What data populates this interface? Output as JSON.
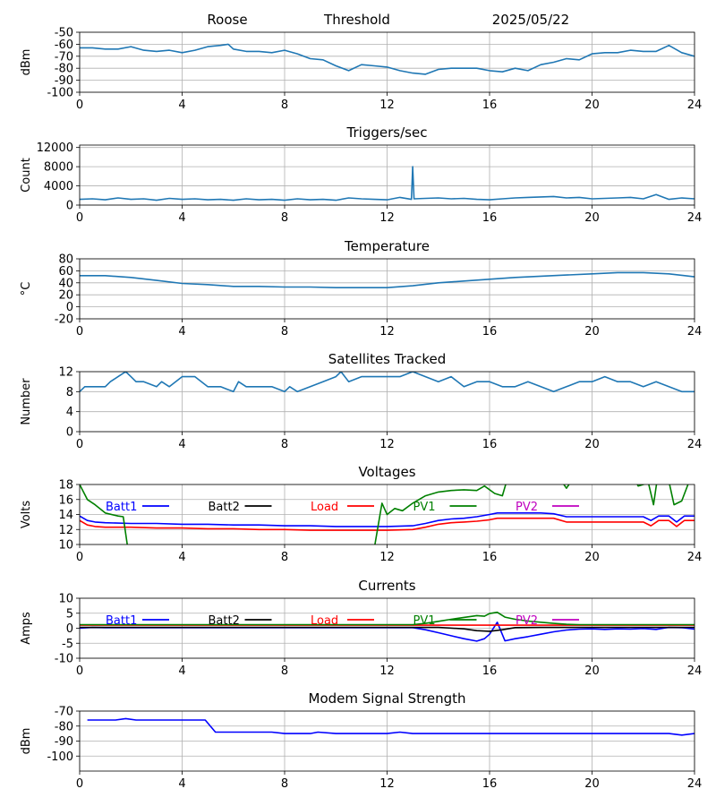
{
  "header": {
    "station": "Roose",
    "mode": "Threshold",
    "date": "2025/05/22"
  },
  "chart_data": [
    {
      "id": "signal",
      "type": "line",
      "title": "",
      "ylabel": "dBm",
      "xlim": [
        0,
        24
      ],
      "xticks": [
        0,
        4,
        8,
        12,
        16,
        20,
        24
      ],
      "ylim": [
        -100,
        -50
      ],
      "yticks": [
        -100,
        -90,
        -80,
        -70,
        -60,
        -50
      ],
      "grid": true,
      "series": [
        {
          "color": "#1f77b4",
          "x": [
            0,
            0.5,
            1,
            1.5,
            2,
            2.5,
            3,
            3.5,
            4,
            4.5,
            5,
            5.5,
            5.8,
            6,
            6.5,
            7,
            7.5,
            8,
            8.5,
            9,
            9.5,
            10,
            10.5,
            11,
            11.5,
            12,
            12.5,
            13,
            13.5,
            14,
            14.5,
            15,
            15.5,
            16,
            16.5,
            17,
            17.5,
            18,
            18.5,
            19,
            19.5,
            20,
            20.5,
            21,
            21.5,
            22,
            22.5,
            23,
            23.5,
            24
          ],
          "y": [
            -63,
            -63,
            -64,
            -64,
            -62,
            -65,
            -66,
            -65,
            -67,
            -65,
            -62,
            -61,
            -60,
            -64,
            -66,
            -66,
            -67,
            -65,
            -68,
            -72,
            -73,
            -78,
            -82,
            -77,
            -78,
            -79,
            -82,
            -84,
            -85,
            -81,
            -80,
            -80,
            -80,
            -82,
            -83,
            -80,
            -82,
            -77,
            -75,
            -72,
            -73,
            -68,
            -67,
            -67,
            -65,
            -66,
            -66,
            -61,
            -67,
            -70
          ]
        }
      ]
    },
    {
      "id": "triggers",
      "type": "line",
      "title": "Triggers/sec",
      "ylabel": "Count",
      "xlim": [
        0,
        24
      ],
      "xticks": [
        0,
        4,
        8,
        12,
        16,
        20,
        24
      ],
      "ylim": [
        0,
        12500
      ],
      "yticks": [
        0,
        4000,
        8000,
        12000
      ],
      "grid": true,
      "series": [
        {
          "color": "#1f77b4",
          "x": [
            0,
            0.5,
            1,
            1.5,
            2,
            2.5,
            3,
            3.5,
            4,
            4.5,
            5,
            5.5,
            6,
            6.5,
            7,
            7.5,
            8,
            8.5,
            9,
            9.5,
            10,
            10.5,
            11,
            11.5,
            12,
            12.5,
            12.95,
            13,
            13.05,
            13.5,
            14,
            14.5,
            15,
            15.5,
            16,
            16.5,
            17,
            17.5,
            18,
            18.5,
            19,
            19.5,
            20,
            20.5,
            21,
            21.5,
            22,
            22.5,
            23,
            23.5,
            24
          ],
          "y": [
            1200,
            1300,
            1100,
            1500,
            1200,
            1300,
            1000,
            1400,
            1200,
            1300,
            1100,
            1200,
            1000,
            1300,
            1100,
            1200,
            1000,
            1300,
            1100,
            1200,
            1000,
            1500,
            1300,
            1200,
            1100,
            1600,
            1200,
            8000,
            1300,
            1400,
            1500,
            1300,
            1400,
            1200,
            1100,
            1300,
            1500,
            1600,
            1700,
            1800,
            1500,
            1600,
            1300,
            1400,
            1500,
            1600,
            1300,
            2200,
            1200,
            1500,
            1300
          ]
        }
      ]
    },
    {
      "id": "temperature",
      "type": "line",
      "title": "Temperature",
      "ylabel": "°C",
      "xlim": [
        0,
        24
      ],
      "xticks": [
        0,
        4,
        8,
        12,
        16,
        20,
        24
      ],
      "ylim": [
        -20,
        80
      ],
      "yticks": [
        -20,
        0,
        20,
        40,
        60,
        80
      ],
      "grid": true,
      "series": [
        {
          "color": "#1f77b4",
          "x": [
            0,
            1,
            2,
            3,
            4,
            5,
            6,
            7,
            8,
            9,
            10,
            11,
            12,
            13,
            14,
            15,
            16,
            17,
            18,
            19,
            20,
            21,
            22,
            23,
            24
          ],
          "y": [
            52,
            52,
            49,
            44,
            39,
            37,
            34,
            34,
            33,
            33,
            32,
            32,
            32,
            35,
            40,
            43,
            46,
            49,
            51,
            53,
            55,
            57,
            57,
            55,
            50
          ]
        }
      ]
    },
    {
      "id": "satellites",
      "type": "line",
      "title": "Satellites Tracked",
      "ylabel": "Number",
      "xlim": [
        0,
        24
      ],
      "xticks": [
        0,
        4,
        8,
        12,
        16,
        20,
        24
      ],
      "ylim": [
        0,
        12
      ],
      "yticks": [
        0,
        4,
        8,
        12
      ],
      "grid": true,
      "series": [
        {
          "color": "#1f77b4",
          "x": [
            0,
            0.2,
            0.5,
            1,
            1.2,
            1.5,
            1.8,
            2,
            2.2,
            2.5,
            3,
            3.2,
            3.5,
            4,
            4.5,
            5,
            5.5,
            6,
            6.2,
            6.5,
            7,
            7.5,
            8,
            8.2,
            8.5,
            9,
            9.5,
            10,
            10.2,
            10.5,
            11,
            11.5,
            12,
            12.5,
            13,
            13.5,
            14,
            14.5,
            15,
            15.5,
            16,
            16.5,
            17,
            17.5,
            18,
            18.5,
            19,
            19.5,
            20,
            20.5,
            21,
            21.5,
            22,
            22.5,
            23,
            23.5,
            24
          ],
          "y": [
            8,
            9,
            9,
            9,
            10,
            11,
            12,
            11,
            10,
            10,
            9,
            10,
            9,
            11,
            11,
            9,
            9,
            8,
            10,
            9,
            9,
            9,
            8,
            9,
            8,
            9,
            10,
            11,
            12,
            10,
            11,
            11,
            11,
            11,
            12,
            11,
            10,
            11,
            9,
            10,
            10,
            9,
            9,
            10,
            9,
            8,
            9,
            10,
            10,
            11,
            10,
            10,
            9,
            10,
            9,
            8,
            8
          ]
        }
      ]
    },
    {
      "id": "voltages",
      "type": "line",
      "title": "Voltages",
      "ylabel": "Volts",
      "xlim": [
        0,
        24
      ],
      "xticks": [
        0,
        4,
        8,
        12,
        16,
        20,
        24
      ],
      "ylim": [
        10,
        18
      ],
      "yticks": [
        10,
        12,
        14,
        16,
        18
      ],
      "grid": true,
      "legend": "inline-top",
      "series": [
        {
          "name": "Batt1",
          "color": "#0000ff",
          "x": [
            0,
            0.3,
            0.6,
            1,
            2,
            3,
            4,
            5,
            6,
            7,
            8,
            9,
            10,
            11,
            12,
            13,
            13.5,
            14,
            14.5,
            15,
            15.5,
            16,
            16.3,
            17,
            18,
            18.5,
            19,
            20,
            21,
            22,
            22.3,
            22.6,
            23,
            23.3,
            23.6,
            24
          ],
          "y": [
            13.8,
            13.2,
            13.0,
            12.9,
            12.8,
            12.8,
            12.7,
            12.7,
            12.6,
            12.6,
            12.5,
            12.5,
            12.4,
            12.4,
            12.4,
            12.5,
            12.8,
            13.2,
            13.4,
            13.5,
            13.7,
            14.0,
            14.2,
            14.2,
            14.2,
            14.1,
            13.7,
            13.7,
            13.7,
            13.7,
            13.2,
            13.8,
            13.8,
            13.0,
            13.8,
            13.8
          ]
        },
        {
          "name": "Batt2",
          "color": "#000000",
          "x": [],
          "y": []
        },
        {
          "name": "Load",
          "color": "#ff0000",
          "x": [
            0,
            0.3,
            0.6,
            1,
            2,
            3,
            4,
            5,
            6,
            7,
            8,
            9,
            10,
            11,
            12,
            13,
            13.5,
            14,
            14.5,
            15,
            15.5,
            16,
            16.3,
            17,
            18,
            18.5,
            19,
            20,
            21,
            22,
            22.3,
            22.6,
            23,
            23.3,
            23.6,
            24
          ],
          "y": [
            13.2,
            12.6,
            12.4,
            12.3,
            12.3,
            12.2,
            12.2,
            12.1,
            12.1,
            12.0,
            12.0,
            11.9,
            11.9,
            11.9,
            11.9,
            12.0,
            12.3,
            12.7,
            12.9,
            13.0,
            13.1,
            13.3,
            13.5,
            13.5,
            13.5,
            13.5,
            13.0,
            13.0,
            13.0,
            13.0,
            12.5,
            13.2,
            13.2,
            12.4,
            13.2,
            13.2
          ]
        },
        {
          "name": "PV1",
          "color": "#008000",
          "x": [
            0,
            0.3,
            0.6,
            1,
            1.5,
            1.7,
            1.9,
            11.5,
            11.8,
            12,
            12.3,
            12.6,
            13,
            13.5,
            14,
            14.5,
            15,
            15.5,
            15.8,
            16.2,
            16.5,
            16.8,
            18.5,
            19,
            19.2,
            21.5,
            21.8,
            22.2,
            22.4,
            22.6,
            22.9,
            23.2,
            23.5,
            23.8
          ],
          "y": [
            18.0,
            16.0,
            15.3,
            14.2,
            13.8,
            13.7,
            9.0,
            9.5,
            15.5,
            14.0,
            14.8,
            14.5,
            15.5,
            16.5,
            17.0,
            17.2,
            17.3,
            17.2,
            17.8,
            16.8,
            16.5,
            20.0,
            20.0,
            17.5,
            18.5,
            20.0,
            17.8,
            18.2,
            15.3,
            20.0,
            20.0,
            15.3,
            15.8,
            18.5
          ]
        },
        {
          "name": "PV2",
          "color": "#bf00bf",
          "x": [],
          "y": []
        }
      ]
    },
    {
      "id": "currents",
      "type": "line",
      "title": "Currents",
      "ylabel": "Amps",
      "xlim": [
        0,
        24
      ],
      "xticks": [
        0,
        4,
        8,
        12,
        16,
        20,
        24
      ],
      "ylim": [
        -10,
        10
      ],
      "yticks": [
        -10,
        -5,
        0,
        5,
        10
      ],
      "grid": true,
      "legend": "inline-top",
      "series": [
        {
          "name": "Batt1",
          "color": "#0000ff",
          "x": [
            0,
            0.5,
            1,
            2,
            4,
            6,
            8,
            10,
            12,
            13,
            13.5,
            14,
            14.5,
            15,
            15.5,
            15.8,
            16,
            16.3,
            16.6,
            17,
            17.5,
            18,
            18.5,
            19,
            19.5,
            20,
            20.5,
            21,
            21.5,
            22,
            22.5,
            23,
            23.5,
            24
          ],
          "y": [
            0.0,
            0.3,
            0.2,
            0.2,
            0.2,
            0.2,
            0.2,
            0.2,
            0.2,
            0.2,
            -0.5,
            -1.5,
            -2.5,
            -3.5,
            -4.3,
            -3.5,
            -2.0,
            2.0,
            -4.2,
            -3.5,
            -2.8,
            -2.0,
            -1.2,
            -0.6,
            -0.3,
            -0.2,
            -0.4,
            -0.2,
            -0.3,
            -0.1,
            -0.4,
            0.3,
            0.2,
            -0.3
          ]
        },
        {
          "name": "Batt2",
          "color": "#000000",
          "x": [
            0,
            2,
            4,
            6,
            8,
            10,
            12,
            13,
            14,
            15,
            15.5,
            16,
            16.5,
            17,
            18,
            20,
            22,
            24
          ],
          "y": [
            0.3,
            0.3,
            0.3,
            0.3,
            0.3,
            0.3,
            0.3,
            0.3,
            0.3,
            -0.2,
            -0.8,
            -1.0,
            -0.5,
            0.2,
            0.3,
            0.3,
            0.3,
            0.3
          ]
        },
        {
          "name": "Load",
          "color": "#ff0000",
          "x": [
            0,
            2,
            4,
            6,
            8,
            10,
            12,
            14,
            16,
            18,
            20,
            22,
            24
          ],
          "y": [
            1.0,
            1.0,
            1.0,
            1.0,
            1.0,
            1.0,
            1.0,
            1.0,
            1.0,
            1.0,
            1.0,
            1.0,
            1.0
          ]
        },
        {
          "name": "PV1",
          "color": "#008000",
          "x": [
            0,
            2,
            4,
            6,
            8,
            10,
            12,
            13,
            13.5,
            14,
            14.5,
            15,
            15.5,
            15.8,
            16,
            16.3,
            16.6,
            17,
            17.5,
            18,
            18.5,
            19,
            19.5,
            20,
            22,
            24
          ],
          "y": [
            1.2,
            1.2,
            1.2,
            1.2,
            1.2,
            1.2,
            1.2,
            1.2,
            1.6,
            2.3,
            3.0,
            3.6,
            4.2,
            4.0,
            4.9,
            5.3,
            3.7,
            3.0,
            2.4,
            2.0,
            1.6,
            1.3,
            1.2,
            1.2,
            1.2,
            1.2
          ]
        },
        {
          "name": "PV2",
          "color": "#bf00bf",
          "x": [],
          "y": []
        }
      ]
    },
    {
      "id": "modem",
      "type": "line",
      "title": "Modem Signal Strength",
      "ylabel": "dBm",
      "xlim": [
        0,
        24
      ],
      "xticks": [
        0,
        4,
        8,
        12,
        16,
        20,
        24
      ],
      "ylim": [
        -110,
        -70
      ],
      "yticks": [
        -100,
        -90,
        -80,
        -70
      ],
      "grid": true,
      "series": [
        {
          "color": "#0000ff",
          "x": [
            0.3,
            1,
            1.4,
            1.8,
            2.2,
            3,
            4,
            4.9,
            5.3,
            6,
            7,
            7.5,
            8,
            9,
            9.3,
            10,
            11,
            12,
            12.5,
            13,
            14,
            15,
            16,
            17,
            18,
            19,
            20,
            21,
            22,
            23,
            23.5,
            24
          ],
          "y": [
            -76,
            -76,
            -76,
            -75,
            -76,
            -76,
            -76,
            -76,
            -84,
            -84,
            -84,
            -84,
            -85,
            -85,
            -84,
            -85,
            -85,
            -85,
            -84,
            -85,
            -85,
            -85,
            -85,
            -85,
            -85,
            -85,
            -85,
            -85,
            -85,
            -85,
            -86,
            -85
          ]
        }
      ]
    }
  ]
}
